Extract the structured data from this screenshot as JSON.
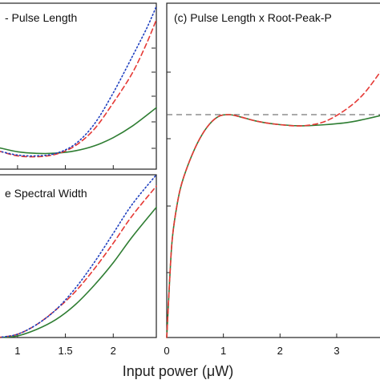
{
  "figure": {
    "xlabel": "Input power (μW)"
  },
  "chart_data": [
    {
      "type": "line",
      "panel": "upper-left",
      "title": "- Pulse Length",
      "xlim": [
        0.8,
        2.45
      ],
      "ylim": [
        0,
        1
      ],
      "x_ticks": [
        1,
        1.5,
        2
      ],
      "x_tick_labels": [],
      "series": [
        {
          "color": "#2e7d32",
          "dash": "solid",
          "x": [
            0.8,
            1.0,
            1.2,
            1.4,
            1.6,
            1.8,
            2.0,
            2.2,
            2.45
          ],
          "y": [
            0.13,
            0.105,
            0.095,
            0.096,
            0.11,
            0.14,
            0.19,
            0.26,
            0.37
          ]
        },
        {
          "color": "#e53935",
          "dash": "dashed",
          "x": [
            0.8,
            1.0,
            1.2,
            1.4,
            1.6,
            1.8,
            2.0,
            2.2,
            2.35,
            2.45
          ],
          "y": [
            0.11,
            0.08,
            0.075,
            0.09,
            0.14,
            0.24,
            0.4,
            0.58,
            0.76,
            0.9
          ]
        },
        {
          "color": "#1e3fbf",
          "dash": "dotted",
          "x": [
            0.8,
            1.0,
            1.2,
            1.4,
            1.6,
            1.8,
            2.0,
            2.2,
            2.35,
            2.45
          ],
          "y": [
            0.11,
            0.085,
            0.08,
            0.095,
            0.15,
            0.27,
            0.46,
            0.68,
            0.85,
            0.98
          ]
        }
      ]
    },
    {
      "type": "line",
      "panel": "lower-left",
      "title": "e Spectral Width",
      "xlim": [
        0.8,
        2.45
      ],
      "ylim": [
        0,
        1
      ],
      "x_ticks": [
        1,
        1.5,
        2
      ],
      "x_tick_labels": [
        "1",
        "1.5",
        "2"
      ],
      "series": [
        {
          "color": "#2e7d32",
          "dash": "solid",
          "x": [
            0.8,
            1.0,
            1.2,
            1.4,
            1.6,
            1.8,
            2.0,
            2.2,
            2.45
          ],
          "y": [
            0.0,
            0.01,
            0.05,
            0.11,
            0.2,
            0.32,
            0.46,
            0.62,
            0.8
          ]
        },
        {
          "color": "#e53935",
          "dash": "dashed",
          "x": [
            0.8,
            1.0,
            1.2,
            1.4,
            1.6,
            1.8,
            2.0,
            2.2,
            2.45
          ],
          "y": [
            0.0,
            0.02,
            0.08,
            0.17,
            0.28,
            0.42,
            0.58,
            0.75,
            0.93
          ]
        },
        {
          "color": "#1e3fbf",
          "dash": "dotted",
          "x": [
            0.8,
            1.0,
            1.2,
            1.4,
            1.6,
            1.8,
            2.0,
            2.2,
            2.45
          ],
          "y": [
            0.0,
            0.02,
            0.08,
            0.17,
            0.3,
            0.46,
            0.64,
            0.82,
            1.0
          ]
        }
      ]
    },
    {
      "type": "line",
      "panel": "right",
      "title": "(c) Pulse Length x Root-Peak-P",
      "xlim": [
        0,
        3.85
      ],
      "ylim": [
        0,
        1.5
      ],
      "x_ticks": [
        0,
        1,
        2,
        3
      ],
      "x_tick_labels": [
        "0",
        "1",
        "2",
        "3"
      ],
      "reference_line": 1,
      "series": [
        {
          "color": "#2e7d32",
          "dash": "solid",
          "x": [
            0,
            0.05,
            0.1,
            0.2,
            0.3,
            0.5,
            0.7,
            0.9,
            1.1,
            1.3,
            1.6,
            2.0,
            2.4,
            2.8,
            3.2,
            3.5,
            3.85
          ],
          "y": [
            0,
            0.25,
            0.45,
            0.62,
            0.72,
            0.85,
            0.94,
            0.99,
            1.0,
            0.99,
            0.97,
            0.955,
            0.95,
            0.955,
            0.965,
            0.98,
            1.0
          ]
        },
        {
          "color": "#e53935",
          "dash": "dashed",
          "x": [
            0,
            0.05,
            0.1,
            0.2,
            0.3,
            0.5,
            0.7,
            0.9,
            1.1,
            1.3,
            1.6,
            2.0,
            2.4,
            2.8,
            3.2,
            3.5,
            3.85
          ],
          "y": [
            0,
            0.25,
            0.45,
            0.62,
            0.72,
            0.85,
            0.94,
            0.99,
            1.0,
            0.99,
            0.97,
            0.955,
            0.95,
            0.97,
            1.03,
            1.1,
            1.22
          ]
        }
      ]
    }
  ]
}
